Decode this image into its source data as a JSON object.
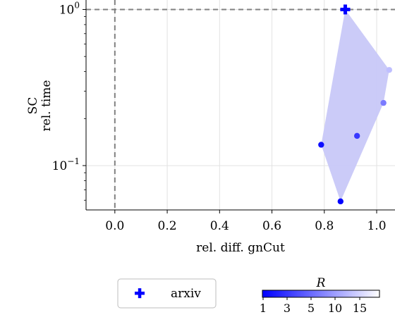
{
  "chart_data": {
    "type": "scatter",
    "xlabel": "rel. diff. gnCut",
    "ylabel": [
      "SC",
      "rel. time"
    ],
    "x_ticks": [
      0.0,
      0.2,
      0.4,
      0.6,
      0.8,
      1.0
    ],
    "x_tick_labels": [
      "0.0",
      "0.2",
      "0.4",
      "0.6",
      "0.8",
      "1.0"
    ],
    "y_scale": "log",
    "y_ticks": [
      {
        "base": "10",
        "exp": "−1",
        "value": 0.1
      },
      {
        "base": "10",
        "exp": "0",
        "value": 1
      }
    ],
    "xlim": [
      -0.11,
      1.07
    ],
    "ylim": [
      0.052,
      1.15
    ],
    "grid": true,
    "reference_lines": {
      "x": 0.0,
      "y": 1.0,
      "style": "dashed",
      "color": "#808080"
    },
    "hull_color": "#c8c8f8",
    "points": [
      {
        "x": 0.862,
        "y": 0.059,
        "R": 1
      },
      {
        "x": 0.788,
        "y": 0.136,
        "R": 2
      },
      {
        "x": 0.925,
        "y": 0.155,
        "R": 5
      },
      {
        "x": 1.026,
        "y": 0.252,
        "R": 10
      },
      {
        "x": 1.048,
        "y": 0.41,
        "R": 15
      }
    ],
    "hull": [
      {
        "x": 0.862,
        "y": 0.059
      },
      {
        "x": 1.026,
        "y": 0.252
      },
      {
        "x": 1.048,
        "y": 0.41
      },
      {
        "x": 0.88,
        "y": 1.0
      },
      {
        "x": 0.788,
        "y": 0.136
      }
    ],
    "marker_point": {
      "x": 0.88,
      "y": 1.0,
      "label": "arxiv",
      "marker": "plus",
      "color": "#0000ff"
    },
    "legend": {
      "entries": [
        "arxiv"
      ],
      "placement": "below-left"
    },
    "colorbar": {
      "label": "R",
      "ticks": [
        "1",
        "3",
        "5",
        "10",
        "15"
      ],
      "tick_values": [
        1,
        3,
        5,
        10,
        15
      ],
      "color_start": "#0000ff",
      "color_end": "#ffffff",
      "placement": "below-right"
    }
  }
}
